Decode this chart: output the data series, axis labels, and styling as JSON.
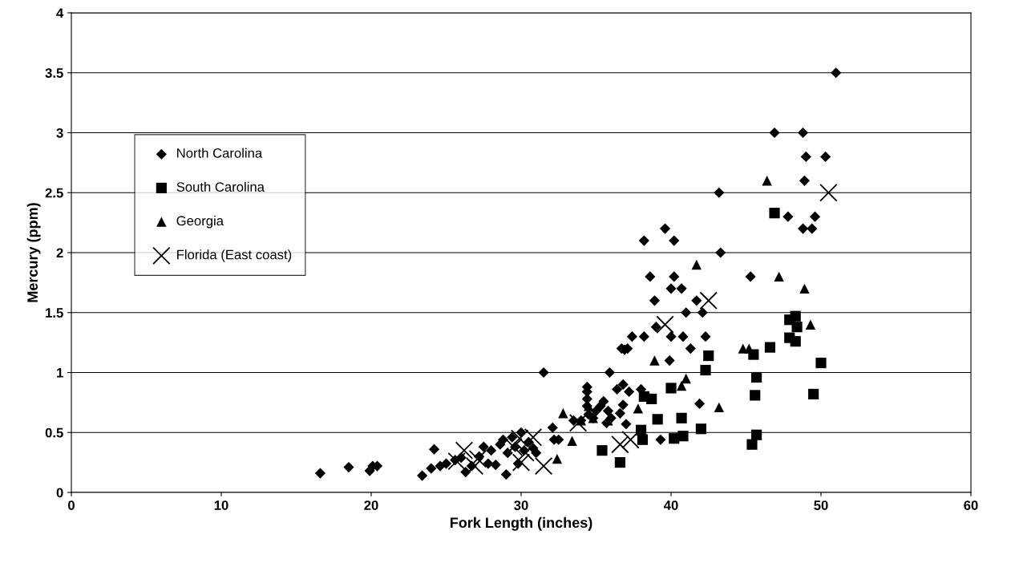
{
  "chart_data": {
    "type": "scatter",
    "xlabel": "Fork Length (inches)",
    "ylabel": "Mercury (ppm)",
    "xlim": [
      0,
      60
    ],
    "xticks": [
      0,
      10,
      20,
      30,
      40,
      50,
      60
    ],
    "ylim": [
      0,
      4
    ],
    "yticks": [
      0,
      0.5,
      1,
      1.5,
      2,
      2.5,
      3,
      3.5,
      4
    ],
    "grid": "y",
    "legend": "top left",
    "series": [
      {
        "name": "North Carolina",
        "color": "#000000",
        "marker": "diamond",
        "x": [
          16.6,
          18.5,
          19.9,
          20.1,
          20.4,
          23.4,
          24.0,
          24.2,
          24.6,
          25.0,
          25.6,
          26.0,
          26.3,
          26.7,
          27.2,
          27.5,
          27.8,
          28.0,
          28.3,
          28.6,
          28.8,
          29.0,
          29.1,
          29.4,
          29.6,
          29.8,
          30.0,
          30.2,
          30.5,
          30.8,
          31.0,
          31.5,
          32.1,
          32.2,
          32.5,
          33.5,
          34.0,
          34.4,
          34.4,
          34.4,
          34.4,
          34.5,
          34.8,
          35.0,
          35.3,
          35.5,
          35.7,
          35.9,
          35.8,
          36.0,
          36.4,
          36.6,
          36.8,
          36.7,
          36.9,
          37.1,
          36.8,
          37.0,
          37.2,
          37.4,
          38.0,
          38.2,
          38.2,
          38.6,
          38.9,
          39.0,
          39.3,
          39.6,
          39.9,
          40.0,
          40.0,
          40.2,
          40.2,
          40.7,
          40.8,
          41.0,
          41.3,
          41.7,
          41.9,
          42.1,
          42.3,
          43.2,
          43.3,
          45.3,
          46.9,
          47.8,
          48.8,
          48.9,
          49.0,
          48.8,
          49.4,
          49.6,
          50.3,
          51.0
        ],
        "values": [
          0.16,
          0.21,
          0.18,
          0.22,
          0.22,
          0.14,
          0.2,
          0.36,
          0.22,
          0.24,
          0.27,
          0.29,
          0.17,
          0.22,
          0.3,
          0.38,
          0.24,
          0.35,
          0.23,
          0.4,
          0.44,
          0.15,
          0.33,
          0.46,
          0.38,
          0.24,
          0.5,
          0.35,
          0.42,
          0.37,
          0.33,
          1.0,
          0.54,
          0.44,
          0.44,
          0.6,
          0.6,
          0.88,
          0.84,
          0.78,
          0.72,
          0.65,
          0.62,
          0.68,
          0.72,
          0.76,
          0.58,
          1.0,
          0.68,
          0.62,
          0.86,
          0.66,
          0.9,
          1.2,
          1.19,
          1.2,
          0.73,
          0.57,
          0.84,
          1.3,
          0.86,
          1.3,
          2.1,
          1.8,
          1.6,
          1.38,
          0.44,
          2.2,
          1.1,
          1.3,
          1.7,
          2.1,
          1.8,
          1.7,
          1.3,
          1.5,
          1.2,
          1.6,
          0.74,
          1.5,
          1.3,
          2.5,
          2.0,
          1.8,
          3.0,
          2.3,
          3.0,
          2.6,
          2.8,
          2.2,
          2.2,
          2.3,
          2.8,
          3.5
        ]
      },
      {
        "name": "South Carolina",
        "color": "#000000",
        "marker": "square",
        "x": [
          35.4,
          36.6,
          38.0,
          38.1,
          38.2,
          38.7,
          39.1,
          40.0,
          40.2,
          40.7,
          40.8,
          42.0,
          42.3,
          42.5,
          45.4,
          45.5,
          45.6,
          45.7,
          45.7,
          46.6,
          46.9,
          47.9,
          47.9,
          48.3,
          48.4,
          48.3,
          50.0,
          49.5
        ],
        "values": [
          0.35,
          0.25,
          0.52,
          0.44,
          0.8,
          0.78,
          0.61,
          0.87,
          0.45,
          0.62,
          0.47,
          0.53,
          1.02,
          1.14,
          0.4,
          1.15,
          0.81,
          0.96,
          0.48,
          1.21,
          2.33,
          1.44,
          1.29,
          1.47,
          1.38,
          1.26,
          1.08,
          0.82
        ]
      },
      {
        "name": "Georgia",
        "color": "#000000",
        "marker": "triangle",
        "x": [
          32.4,
          32.8,
          33.4,
          34.0,
          34.5,
          34.8,
          35.8,
          37.8,
          38.9,
          40.7,
          41.0,
          41.7,
          43.2,
          44.8,
          45.2,
          46.4,
          47.2,
          48.9,
          49.3
        ],
        "values": [
          0.28,
          0.66,
          0.43,
          0.6,
          0.72,
          0.62,
          0.6,
          0.7,
          1.1,
          0.89,
          0.95,
          1.9,
          0.71,
          1.2,
          1.2,
          2.6,
          1.8,
          1.7,
          1.4
        ]
      },
      {
        "name": "Florida (East coast)",
        "color": "#000000",
        "marker": "cross",
        "x": [
          25.7,
          26.2,
          26.9,
          27.1,
          29.5,
          29.9,
          30.0,
          30.3,
          30.8,
          31.5,
          33.8,
          36.6,
          37.3,
          39.6,
          42.5,
          50.5
        ],
        "values": [
          0.26,
          0.35,
          0.22,
          0.28,
          0.38,
          0.45,
          0.25,
          0.33,
          0.46,
          0.22,
          0.58,
          0.4,
          0.44,
          1.4,
          1.6,
          2.5
        ]
      }
    ]
  }
}
